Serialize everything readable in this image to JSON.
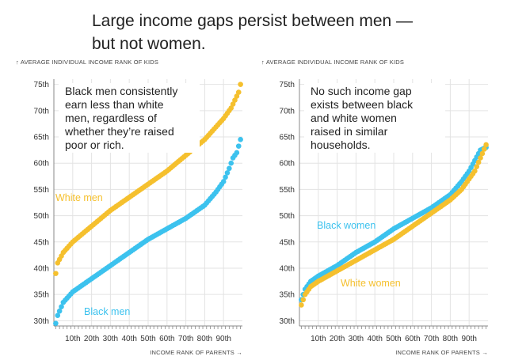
{
  "headline": "Large income gaps persist between men — but not women.",
  "colors": {
    "yellow": "#f5c02e",
    "blue": "#3cc2ee",
    "grid": "#e3e3e3",
    "axis": "#888888"
  },
  "chart_data": [
    {
      "type": "scatter",
      "title": "",
      "ylabel": "↑ AVERAGE INDIVIDUAL INCOME RANK OF KIDS",
      "xlabel": "INCOME RANK OF PARENTS →",
      "xlim": [
        0,
        100
      ],
      "ylim": [
        29,
        76
      ],
      "x_ticks": [
        "10th",
        "20th",
        "30th",
        "40th",
        "50th",
        "60th",
        "70th",
        "80th",
        "90th"
      ],
      "y_ticks": [
        "30th",
        "35th",
        "40th",
        "45th",
        "50th",
        "55th",
        "60th",
        "65th",
        "70th",
        "75th"
      ],
      "annotation": [
        "Black men consistently",
        "earn less than white",
        "men, regardless of",
        "whether they’re raised",
        "poor or rich."
      ],
      "series": [
        {
          "name": "White men",
          "color": "#f5c02e",
          "curve": [
            [
              1,
              39
            ],
            [
              2,
              41
            ],
            [
              5,
              43
            ],
            [
              10,
              45
            ],
            [
              20,
              48
            ],
            [
              30,
              51
            ],
            [
              40,
              53.5
            ],
            [
              50,
              56
            ],
            [
              60,
              58.5
            ],
            [
              70,
              61.5
            ],
            [
              80,
              64.5
            ],
            [
              85,
              66.5
            ],
            [
              90,
              68.5
            ],
            [
              94,
              70.5
            ],
            [
              96,
              72
            ],
            [
              98,
              73.5
            ],
            [
              99,
              75
            ]
          ]
        },
        {
          "name": "Black men",
          "color": "#3cc2ee",
          "curve": [
            [
              1,
              29.5
            ],
            [
              2,
              31
            ],
            [
              5,
              33.5
            ],
            [
              10,
              35.5
            ],
            [
              20,
              38
            ],
            [
              30,
              40.5
            ],
            [
              40,
              43
            ],
            [
              50,
              45.5
            ],
            [
              60,
              47.5
            ],
            [
              70,
              49.5
            ],
            [
              80,
              52
            ],
            [
              86,
              54.5
            ],
            [
              90,
              56.5
            ],
            [
              93,
              59
            ],
            [
              95,
              61
            ],
            [
              97,
              62
            ],
            [
              99,
              64.5
            ]
          ]
        }
      ]
    },
    {
      "type": "scatter",
      "title": "",
      "ylabel": "↑ AVERAGE INDIVIDUAL INCOME RANK OF KIDS",
      "xlabel": "INCOME RANK OF PARENTS →",
      "xlim": [
        0,
        100
      ],
      "ylim": [
        29,
        76
      ],
      "x_ticks": [
        "10th",
        "20th",
        "30th",
        "40th",
        "50th",
        "60th",
        "70th",
        "80th",
        "90th"
      ],
      "y_ticks": [
        "30th",
        "35th",
        "40th",
        "45th",
        "50th",
        "55th",
        "60th",
        "65th",
        "70th",
        "75th"
      ],
      "annotation": [
        "No such income gap",
        "exists between black",
        "and white women",
        "raised in similar",
        "households."
      ],
      "series": [
        {
          "name": "Black women",
          "color": "#3cc2ee",
          "curve": [
            [
              1,
              34
            ],
            [
              3,
              36
            ],
            [
              6,
              37.5
            ],
            [
              10,
              38.5
            ],
            [
              20,
              40.5
            ],
            [
              30,
              43
            ],
            [
              40,
              45
            ],
            [
              50,
              47.5
            ],
            [
              60,
              49.5
            ],
            [
              70,
              51.5
            ],
            [
              80,
              54
            ],
            [
              86,
              56.5
            ],
            [
              90,
              58.5
            ],
            [
              93,
              60.5
            ],
            [
              96,
              62.5
            ],
            [
              99,
              63
            ]
          ]
        },
        {
          "name": "White women",
          "color": "#f5c02e",
          "curve": [
            [
              1,
              33
            ],
            [
              3,
              35
            ],
            [
              6,
              36.5
            ],
            [
              10,
              37.5
            ],
            [
              20,
              39.5
            ],
            [
              30,
              41.5
            ],
            [
              40,
              43.5
            ],
            [
              50,
              45.5
            ],
            [
              60,
              48
            ],
            [
              70,
              50.5
            ],
            [
              80,
              53
            ],
            [
              86,
              55
            ],
            [
              90,
              57
            ],
            [
              93,
              58.5
            ],
            [
              96,
              61
            ],
            [
              99,
              63.5
            ]
          ]
        }
      ]
    }
  ]
}
